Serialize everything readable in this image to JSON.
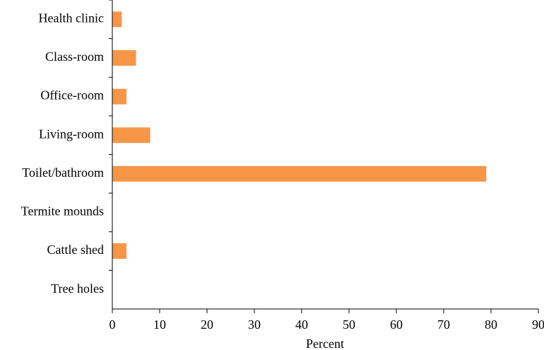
{
  "chart_data": {
    "type": "hbar",
    "x_label": "Percent",
    "categories": [
      "Health clinic",
      "Class-room",
      "Office-room",
      "Living-room",
      "Toilet/bathroom",
      "Termite mounds",
      "Cattle shed",
      "Tree holes"
    ],
    "values": [
      2,
      5,
      3,
      8,
      79,
      0,
      3,
      0
    ],
    "color": "#f79646",
    "xlim": [
      0,
      90
    ],
    "xticks": [
      0,
      10,
      20,
      30,
      40,
      50,
      60,
      70,
      80,
      90
    ],
    "grid": false
  }
}
